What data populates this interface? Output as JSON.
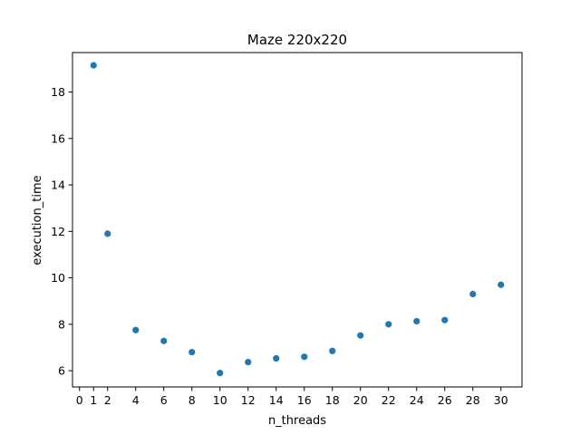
{
  "chart_data": {
    "type": "scatter",
    "title": "Maze 220x220",
    "xlabel": "n_threads",
    "ylabel": "execution_time",
    "xlim": [
      -0.5,
      31.5
    ],
    "ylim": [
      5.3,
      19.7
    ],
    "xticks": [
      0,
      1,
      2,
      4,
      6,
      8,
      10,
      12,
      14,
      16,
      18,
      20,
      22,
      24,
      26,
      28,
      30
    ],
    "yticks": [
      6,
      8,
      10,
      12,
      14,
      16,
      18
    ],
    "grid": false,
    "color": "#1f77b4",
    "points": [
      {
        "x": 1,
        "y": 19.15
      },
      {
        "x": 2,
        "y": 11.9
      },
      {
        "x": 4,
        "y": 7.75
      },
      {
        "x": 6,
        "y": 7.28
      },
      {
        "x": 8,
        "y": 6.8
      },
      {
        "x": 10,
        "y": 5.9
      },
      {
        "x": 12,
        "y": 6.37
      },
      {
        "x": 14,
        "y": 6.53
      },
      {
        "x": 16,
        "y": 6.6
      },
      {
        "x": 18,
        "y": 6.85
      },
      {
        "x": 20,
        "y": 7.52
      },
      {
        "x": 22,
        "y": 8.0
      },
      {
        "x": 24,
        "y": 8.13
      },
      {
        "x": 26,
        "y": 8.18
      },
      {
        "x": 28,
        "y": 9.3
      },
      {
        "x": 30,
        "y": 9.7
      }
    ]
  }
}
